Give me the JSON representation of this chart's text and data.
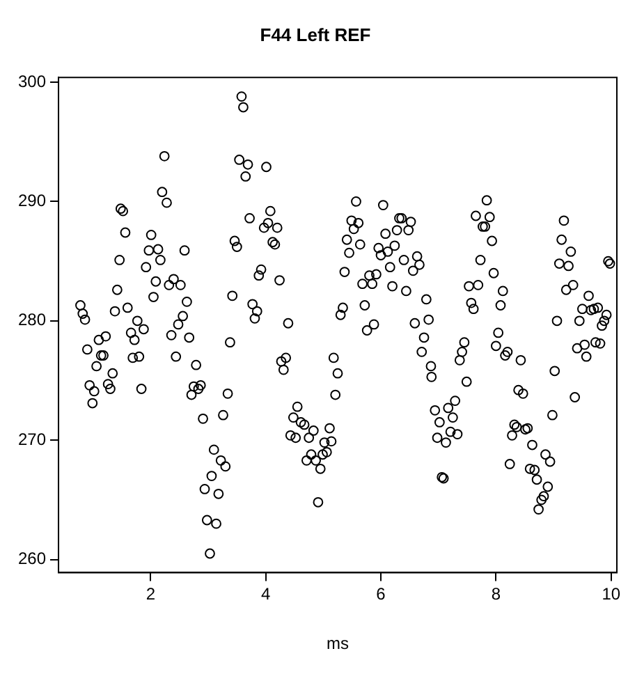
{
  "chart_data": {
    "type": "scatter",
    "title": "F44 Left REF",
    "xlabel": "ms",
    "xlim": [
      0.4,
      10.1
    ],
    "xticks": [
      2,
      4,
      6,
      8,
      10
    ],
    "ylim": [
      258.9,
      300.4
    ],
    "yticks": [
      260,
      270,
      280,
      290,
      300
    ],
    "grid": false,
    "legend": false,
    "marker": "circle",
    "series": [
      {
        "color": "#000000",
        "x": [
          0.78,
          0.82,
          0.86,
          0.9,
          1.1,
          1.22,
          1.14,
          1.18,
          1.06,
          1.34,
          0.94,
          1.02,
          1.26,
          1.3,
          0.99,
          1.38,
          1.42,
          1.46,
          1.48,
          1.52,
          1.56,
          1.6,
          1.66,
          1.72,
          1.77,
          1.88,
          1.8,
          1.69,
          1.84,
          1.92,
          1.97,
          2.01,
          2.05,
          2.09,
          2.13,
          2.17,
          2.2,
          2.24,
          2.28,
          2.32,
          2.36,
          2.4,
          2.44,
          2.48,
          2.52,
          2.56,
          2.59,
          2.63,
          2.67,
          2.71,
          2.75,
          2.79,
          2.83,
          2.87,
          2.91,
          3.26,
          3.34,
          3.38,
          3.42,
          3.46,
          3.5,
          3.1,
          3.22,
          3.3,
          3.06,
          2.94,
          3.18,
          2.98,
          3.14,
          3.03,
          3.58,
          3.61,
          3.54,
          3.69,
          3.65,
          4.01,
          4.08,
          3.72,
          3.97,
          4.04,
          4.2,
          4.12,
          4.16,
          3.92,
          3.88,
          4.24,
          3.77,
          3.85,
          3.81,
          4.39,
          4.27,
          4.35,
          4.31,
          4.55,
          4.48,
          4.61,
          4.67,
          4.43,
          4.52,
          4.75,
          4.83,
          4.79,
          4.71,
          4.87,
          4.95,
          4.99,
          5.06,
          5.02,
          5.14,
          5.11,
          4.91,
          5.18,
          5.25,
          5.21,
          5.37,
          5.41,
          5.45,
          5.49,
          5.53,
          5.57,
          5.61,
          5.64,
          5.3,
          5.34,
          5.68,
          5.72,
          5.76,
          5.8,
          5.85,
          5.88,
          5.92,
          5.96,
          6.0,
          6.04,
          6.08,
          6.12,
          6.16,
          6.2,
          6.24,
          6.28,
          6.32,
          6.36,
          6.4,
          6.44,
          6.48,
          6.52,
          6.56,
          6.59,
          6.63,
          6.67,
          6.71,
          6.75,
          6.79,
          6.83,
          6.87,
          6.88,
          6.94,
          7.02,
          6.98,
          7.13,
          7.17,
          7.21,
          7.25,
          7.29,
          7.33,
          7.06,
          7.09,
          7.37,
          7.41,
          7.45,
          7.49,
          7.53,
          7.57,
          7.61,
          7.65,
          7.69,
          7.73,
          7.77,
          7.81,
          7.84,
          7.89,
          7.93,
          7.96,
          8.0,
          8.04,
          8.08,
          8.12,
          8.16,
          8.2,
          8.28,
          8.24,
          8.32,
          8.36,
          8.43,
          8.39,
          8.47,
          8.51,
          8.55,
          8.59,
          8.63,
          8.67,
          8.71,
          8.74,
          8.79,
          8.83,
          8.86,
          8.9,
          8.94,
          8.98,
          9.02,
          9.06,
          9.1,
          9.14,
          9.18,
          9.22,
          9.26,
          9.3,
          9.34,
          9.37,
          9.41,
          9.45,
          9.5,
          9.54,
          9.57,
          9.61,
          9.65,
          9.7,
          9.73,
          9.77,
          9.81,
          9.84,
          9.88,
          9.92,
          9.95,
          9.98
        ],
        "values": [
          281.3,
          280.6,
          280.1,
          277.6,
          278.4,
          278.7,
          277.1,
          277.1,
          276.2,
          275.6,
          274.6,
          274.1,
          274.7,
          274.3,
          273.1,
          280.8,
          282.6,
          285.1,
          289.4,
          289.2,
          287.4,
          281.1,
          279.0,
          278.4,
          280.0,
          279.3,
          277.0,
          276.9,
          274.3,
          284.5,
          285.9,
          287.2,
          282.0,
          283.3,
          286.0,
          285.1,
          290.8,
          293.8,
          289.9,
          283.0,
          278.8,
          283.5,
          277.0,
          279.7,
          283.0,
          280.4,
          285.9,
          281.6,
          278.6,
          273.8,
          274.5,
          276.3,
          274.3,
          274.6,
          271.8,
          272.1,
          273.9,
          278.2,
          282.1,
          286.7,
          286.2,
          269.2,
          268.3,
          267.8,
          267.0,
          265.9,
          265.5,
          263.3,
          263.0,
          260.5,
          298.8,
          297.9,
          293.5,
          293.1,
          292.1,
          292.9,
          289.2,
          288.6,
          287.8,
          288.2,
          287.8,
          286.6,
          286.4,
          284.3,
          283.8,
          283.4,
          281.4,
          280.8,
          280.2,
          279.8,
          276.6,
          276.9,
          275.9,
          272.8,
          271.9,
          271.5,
          271.3,
          270.4,
          270.2,
          270.2,
          270.8,
          268.8,
          268.3,
          268.3,
          267.6,
          268.8,
          269.0,
          269.8,
          269.9,
          271.0,
          264.8,
          276.9,
          275.6,
          273.8,
          284.1,
          286.8,
          285.7,
          288.4,
          287.7,
          290.0,
          288.2,
          286.4,
          280.5,
          281.1,
          283.1,
          281.3,
          279.2,
          283.8,
          283.1,
          279.7,
          283.9,
          286.1,
          285.5,
          289.7,
          287.3,
          285.8,
          284.5,
          282.9,
          286.3,
          287.6,
          288.6,
          288.6,
          285.1,
          282.5,
          287.6,
          288.3,
          284.2,
          279.8,
          285.4,
          284.7,
          277.4,
          278.6,
          281.8,
          280.1,
          276.2,
          275.3,
          272.5,
          271.5,
          270.2,
          269.8,
          272.7,
          270.7,
          271.9,
          273.3,
          270.5,
          266.9,
          266.8,
          276.7,
          277.4,
          278.2,
          274.9,
          282.9,
          281.5,
          281.0,
          288.8,
          283.0,
          285.1,
          287.9,
          287.9,
          290.1,
          288.7,
          286.7,
          284.0,
          277.9,
          279.0,
          281.3,
          282.5,
          277.1,
          277.4,
          270.4,
          268.0,
          271.3,
          271.1,
          276.7,
          274.2,
          273.9,
          270.9,
          271.0,
          267.6,
          269.6,
          267.5,
          266.7,
          264.2,
          265.0,
          265.3,
          268.8,
          266.1,
          268.2,
          272.1,
          275.8,
          280.0,
          284.8,
          286.8,
          288.4,
          282.6,
          284.6,
          285.8,
          283.0,
          273.6,
          277.7,
          280.0,
          281.0,
          278.0,
          277.0,
          282.1,
          280.9,
          281.0,
          278.2,
          281.1,
          278.1,
          279.6,
          280.0,
          280.5,
          285.0,
          284.8
        ]
      }
    ]
  }
}
